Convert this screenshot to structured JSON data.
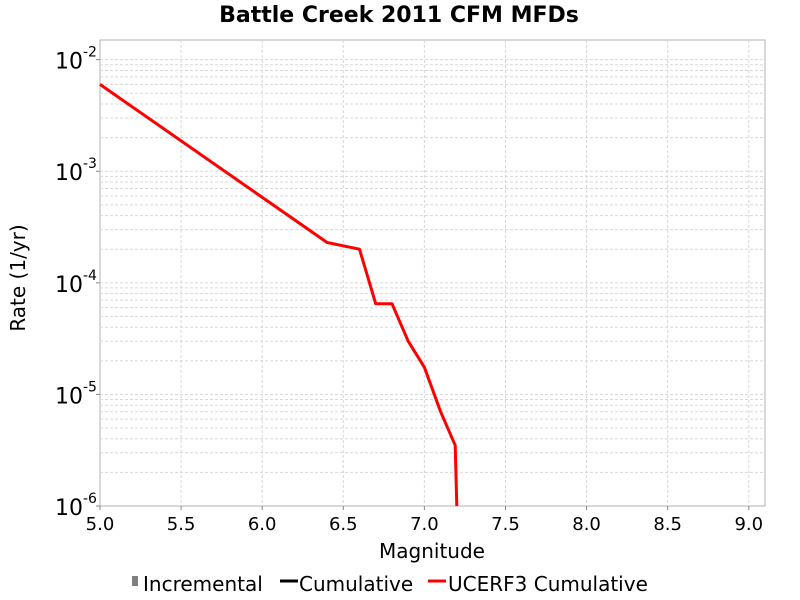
{
  "chart_data": {
    "type": "line",
    "title": "Battle Creek 2011 CFM MFDs",
    "xlabel": "Magnitude",
    "ylabel": "Rate (1/yr)",
    "xlim": [
      5.0,
      9.1
    ],
    "ylim": [
      1e-06,
      0.015
    ],
    "yscale": "log",
    "grid": true,
    "legend_position": "bottom",
    "x_ticks": [
      "5.0",
      "5.5",
      "6.0",
      "6.5",
      "7.0",
      "7.5",
      "8.0",
      "8.5",
      "9.0"
    ],
    "y_ticks": [
      {
        "base": "10",
        "exp": "-2"
      },
      {
        "base": "10",
        "exp": "-3"
      },
      {
        "base": "10",
        "exp": "-4"
      },
      {
        "base": "10",
        "exp": "-5"
      },
      {
        "base": "10",
        "exp": "-6"
      }
    ],
    "series": [
      {
        "name": "Incremental",
        "color": "#808080",
        "legend_symbol": "box",
        "x": [],
        "y": []
      },
      {
        "name": "Cumulative",
        "color": "#000000",
        "legend_symbol": "line",
        "x": [],
        "y": []
      },
      {
        "name": "UCERF3 Cumulative",
        "color": "#ff0000",
        "legend_symbol": "line",
        "x": [
          5.0,
          6.4,
          6.6,
          6.7,
          6.8,
          6.9,
          7.0,
          7.1,
          7.19,
          7.2
        ],
        "y": [
          0.006,
          0.00023,
          0.0002,
          6.5e-05,
          6.5e-05,
          3e-05,
          1.75e-05,
          7e-06,
          3.5e-06,
          1e-06
        ]
      }
    ]
  }
}
